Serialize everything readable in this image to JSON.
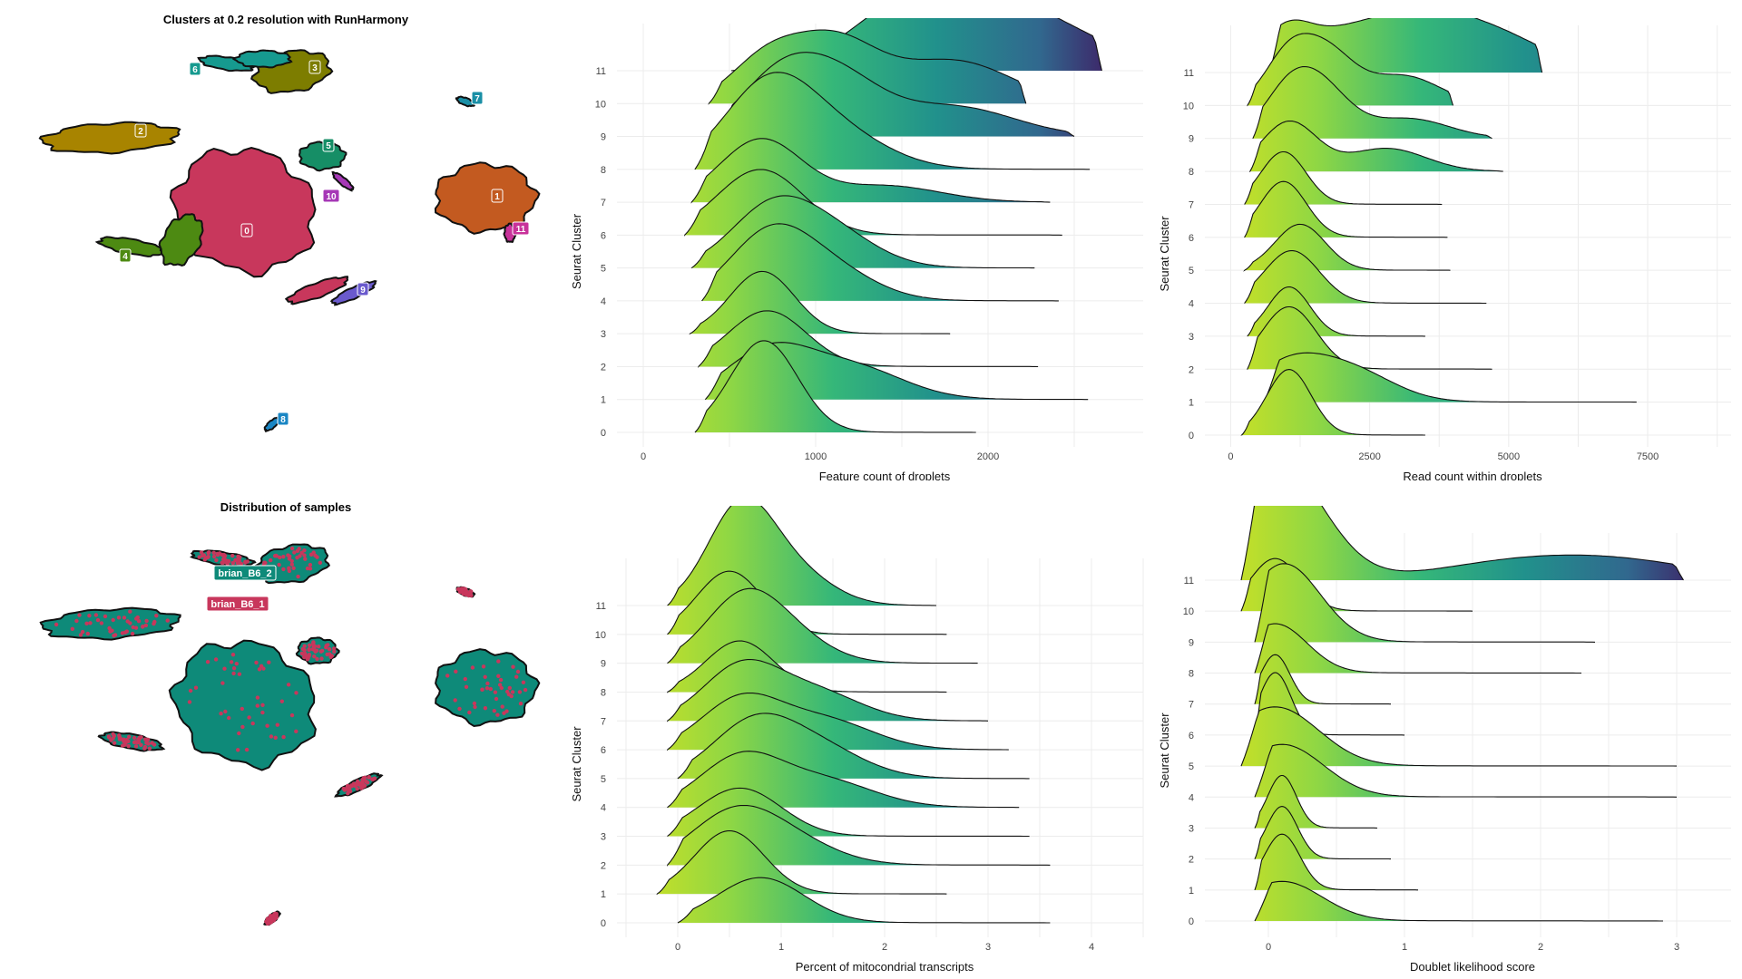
{
  "umap_panels": [
    {
      "title": "Clusters at 0.2 resolution with RunHarmony",
      "cluster_labels": [
        {
          "label": "0",
          "color": "#C8375C"
        },
        {
          "label": "1",
          "color": "#C35A20"
        },
        {
          "label": "2",
          "color": "#A88400"
        },
        {
          "label": "3",
          "color": "#7D7D00"
        },
        {
          "label": "4",
          "color": "#4D8A12"
        },
        {
          "label": "5",
          "color": "#168E66"
        },
        {
          "label": "6",
          "color": "#169A8F"
        },
        {
          "label": "7",
          "color": "#1A8FA6"
        },
        {
          "label": "8",
          "color": "#1A86C4"
        },
        {
          "label": "9",
          "color": "#6A5ACD"
        },
        {
          "label": "10",
          "color": "#A638B6"
        },
        {
          "label": "11",
          "color": "#C8329A"
        }
      ]
    },
    {
      "title": "Distribution of samples",
      "sample_labels": [
        {
          "label": "brian_B6_2",
          "color": "#0E8A79"
        },
        {
          "label": "brian_B6_1",
          "color": "#C8375C"
        }
      ]
    }
  ],
  "chart_data": [
    {
      "type": "ridgeline",
      "xlabel": "Feature count of droplets",
      "ylabel": "Seurat Cluster",
      "categories": [
        "0",
        "1",
        "2",
        "3",
        "4",
        "5",
        "6",
        "7",
        "8",
        "9",
        "10",
        "11"
      ],
      "xticks": [
        0,
        1000,
        2000
      ],
      "xlim": [
        -100,
        2900
      ],
      "fill": "viridis gradient (left yellow-green to right purple)",
      "ridges": [
        {
          "cluster": "0",
          "range": [
            300,
            1930
          ],
          "peaks": [
            [
              700,
              2.8
            ]
          ]
        },
        {
          "cluster": "1",
          "range": [
            360,
            2580
          ],
          "peaks": [
            [
              720,
              1.4
            ],
            [
              1200,
              1.0
            ]
          ]
        },
        {
          "cluster": "2",
          "range": [
            320,
            2290
          ],
          "peaks": [
            [
              720,
              1.7
            ]
          ]
        },
        {
          "cluster": "3",
          "range": [
            270,
            1780
          ],
          "peaks": [
            [
              690,
              1.9
            ]
          ]
        },
        {
          "cluster": "4",
          "range": [
            340,
            2410
          ],
          "peaks": [
            [
              720,
              1.8
            ],
            [
              1050,
              1.0
            ]
          ]
        },
        {
          "cluster": "5",
          "range": [
            280,
            2270
          ],
          "peaks": [
            [
              720,
              1.5
            ],
            [
              1050,
              1.2
            ]
          ]
        },
        {
          "cluster": "6",
          "range": [
            240,
            2430
          ],
          "peaks": [
            [
              680,
              2.0
            ]
          ]
        },
        {
          "cluster": "7",
          "range": [
            280,
            2360
          ],
          "peaks": [
            [
              680,
              1.9
            ],
            [
              1400,
              0.5
            ]
          ]
        },
        {
          "cluster": "8",
          "range": [
            300,
            2590
          ],
          "peaks": [
            [
              720,
              2.4
            ],
            [
              1100,
              1.1
            ]
          ]
        },
        {
          "cluster": "9",
          "range": [
            430,
            2500
          ],
          "peaks": [
            [
              760,
              1.4
            ],
            [
              1100,
              1.8
            ],
            [
              1800,
              0.9
            ]
          ]
        },
        {
          "cluster": "10",
          "range": [
            380,
            2220
          ],
          "peaks": [
            [
              700,
              1.2
            ],
            [
              1100,
              1.9
            ],
            [
              1800,
              1.3
            ]
          ]
        },
        {
          "cluster": "11",
          "range": [
            510,
            2660
          ],
          "peaks": [
            [
              1300,
              0.5
            ],
            [
              1630,
              1.5
            ],
            [
              1990,
              1.0
            ],
            [
              2330,
              1.0
            ]
          ]
        }
      ]
    },
    {
      "type": "ridgeline",
      "xlabel": "Read count within droplets",
      "ylabel": "Seurat Cluster",
      "categories": [
        "0",
        "1",
        "2",
        "3",
        "4",
        "5",
        "6",
        "7",
        "8",
        "9",
        "10",
        "11"
      ],
      "xticks": [
        0,
        2500,
        5000,
        7500
      ],
      "xlim": [
        -300,
        9000
      ],
      "fill": "viridis gradient (left yellow-green to right purple)",
      "ridges": [
        {
          "cluster": "0",
          "range": [
            200,
            3500
          ],
          "peaks": [
            [
              1050,
              2.0
            ]
          ]
        },
        {
          "cluster": "1",
          "range": [
            600,
            7300
          ],
          "peaks": [
            [
              1000,
              1.0
            ],
            [
              2100,
              1.0
            ]
          ]
        },
        {
          "cluster": "2",
          "range": [
            300,
            4700
          ],
          "peaks": [
            [
              1050,
              1.9
            ]
          ]
        },
        {
          "cluster": "3",
          "range": [
            300,
            3500
          ],
          "peaks": [
            [
              1050,
              1.5
            ]
          ]
        },
        {
          "cluster": "4",
          "range": [
            250,
            4600
          ],
          "peaks": [
            [
              1100,
              1.6
            ]
          ]
        },
        {
          "cluster": "5",
          "range": [
            250,
            3950
          ],
          "peaks": [
            [
              1250,
              1.4
            ]
          ]
        },
        {
          "cluster": "6",
          "range": [
            250,
            3900
          ],
          "peaks": [
            [
              950,
              1.7
            ]
          ]
        },
        {
          "cluster": "7",
          "range": [
            250,
            3800
          ],
          "peaks": [
            [
              950,
              1.6
            ]
          ]
        },
        {
          "cluster": "8",
          "range": [
            350,
            4900
          ],
          "peaks": [
            [
              1050,
              1.5
            ],
            [
              2800,
              0.7
            ]
          ]
        },
        {
          "cluster": "9",
          "range": [
            400,
            4700
          ],
          "peaks": [
            [
              1000,
              1.1
            ],
            [
              1600,
              1.5
            ],
            [
              3200,
              0.6
            ]
          ]
        },
        {
          "cluster": "10",
          "range": [
            300,
            4000
          ],
          "peaks": [
            [
              1000,
              1.3
            ],
            [
              1700,
              1.6
            ],
            [
              3100,
              0.9
            ]
          ]
        },
        {
          "cluster": "11",
          "range": [
            700,
            5600
          ],
          "peaks": [
            [
              1000,
              1.3
            ],
            [
              2000,
              0.9
            ],
            [
              3200,
              1.4
            ],
            [
              4300,
              0.8
            ],
            [
              5000,
              0.6
            ]
          ]
        }
      ]
    },
    {
      "type": "ridgeline",
      "xlabel": "Percent of mitocondrial transcripts",
      "ylabel": "Seurat Cluster",
      "categories": [
        "0",
        "1",
        "2",
        "3",
        "4",
        "5",
        "6",
        "7",
        "8",
        "9",
        "10",
        "11"
      ],
      "xticks": [
        0,
        1,
        2,
        3,
        4
      ],
      "xlim": [
        -0.5,
        4.5
      ],
      "fill": "viridis gradient (left yellow-green to right purple)",
      "ridges": [
        {
          "cluster": "0",
          "range": [
            0.0,
            3.6
          ],
          "peaks": [
            [
              0.8,
              1.5
            ]
          ]
        },
        {
          "cluster": "1",
          "range": [
            -0.2,
            2.6
          ],
          "peaks": [
            [
              0.5,
              2.1
            ]
          ]
        },
        {
          "cluster": "2",
          "range": [
            -0.1,
            3.6
          ],
          "peaks": [
            [
              0.5,
              1.4
            ],
            [
              1.0,
              0.9
            ]
          ]
        },
        {
          "cluster": "3",
          "range": [
            -0.1,
            3.4
          ],
          "peaks": [
            [
              0.6,
              1.6
            ]
          ]
        },
        {
          "cluster": "4",
          "range": [
            -0.1,
            3.3
          ],
          "peaks": [
            [
              0.6,
              1.6
            ],
            [
              1.4,
              0.9
            ]
          ]
        },
        {
          "cluster": "5",
          "range": [
            0.0,
            3.4
          ],
          "peaks": [
            [
              0.7,
              1.6
            ],
            [
              1.3,
              1.1
            ]
          ]
        },
        {
          "cluster": "6",
          "range": [
            -0.1,
            3.2
          ],
          "peaks": [
            [
              0.6,
              1.6
            ],
            [
              1.4,
              1.0
            ]
          ]
        },
        {
          "cluster": "7",
          "range": [
            -0.1,
            3.0
          ],
          "peaks": [
            [
              0.6,
              1.7
            ],
            [
              1.3,
              1.0
            ]
          ]
        },
        {
          "cluster": "8",
          "range": [
            -0.1,
            2.6
          ],
          "peaks": [
            [
              0.6,
              1.7
            ]
          ]
        },
        {
          "cluster": "9",
          "range": [
            -0.1,
            2.9
          ],
          "peaks": [
            [
              0.6,
              1.8
            ],
            [
              1.0,
              1.0
            ]
          ]
        },
        {
          "cluster": "10",
          "range": [
            -0.1,
            2.6
          ],
          "peaks": [
            [
              0.5,
              2.1
            ]
          ]
        },
        {
          "cluster": "11",
          "range": [
            -0.1,
            2.5
          ],
          "peaks": [
            [
              0.6,
              3.1
            ],
            [
              1.1,
              1.1
            ]
          ]
        }
      ]
    },
    {
      "type": "ridgeline",
      "xlabel": "Doublet likelihood score",
      "ylabel": "Seurat Cluster",
      "categories": [
        "0",
        "1",
        "2",
        "3",
        "4",
        "5",
        "6",
        "7",
        "8",
        "9",
        "10",
        "11"
      ],
      "xticks": [
        0,
        1,
        2,
        3
      ],
      "xlim": [
        -0.4,
        3.4
      ],
      "fill": "viridis gradient (left yellow-green to right purple)",
      "ridges": [
        {
          "cluster": "0",
          "range": [
            -0.1,
            2.9
          ],
          "peaks": [
            [
              0.1,
              1.2
            ]
          ]
        },
        {
          "cluster": "1",
          "range": [
            -0.1,
            1.1
          ],
          "peaks": [
            [
              0.1,
              1.7
            ]
          ]
        },
        {
          "cluster": "2",
          "range": [
            -0.1,
            0.9
          ],
          "peaks": [
            [
              0.1,
              1.6
            ]
          ]
        },
        {
          "cluster": "3",
          "range": [
            -0.1,
            0.8
          ],
          "peaks": [
            [
              0.1,
              1.6
            ]
          ]
        },
        {
          "cluster": "4",
          "range": [
            -0.1,
            3.0
          ],
          "peaks": [
            [
              0.1,
              1.6
            ]
          ]
        },
        {
          "cluster": "5",
          "range": [
            -0.2,
            3.0
          ],
          "peaks": [
            [
              0.05,
              1.8
            ]
          ]
        },
        {
          "cluster": "6",
          "range": [
            -0.1,
            1.0
          ],
          "peaks": [
            [
              0.05,
              1.9
            ]
          ]
        },
        {
          "cluster": "7",
          "range": [
            -0.1,
            0.9
          ],
          "peaks": [
            [
              0.05,
              1.5
            ]
          ]
        },
        {
          "cluster": "8",
          "range": [
            -0.1,
            2.3
          ],
          "peaks": [
            [
              0.05,
              1.5
            ]
          ]
        },
        {
          "cluster": "9",
          "range": [
            -0.1,
            2.4
          ],
          "peaks": [
            [
              0.05,
              1.3
            ],
            [
              0.2,
              1.2
            ]
          ]
        },
        {
          "cluster": "10",
          "range": [
            -0.2,
            1.5
          ],
          "peaks": [
            [
              0.05,
              1.6
            ]
          ]
        },
        {
          "cluster": "11",
          "range": [
            -0.2,
            3.05
          ],
          "peaks": [
            [
              0.05,
              2.9
            ],
            [
              0.2,
              0.7
            ],
            [
              1.6,
              0.3
            ],
            [
              2.3,
              0.4
            ],
            [
              2.7,
              0.3
            ]
          ]
        }
      ]
    }
  ]
}
